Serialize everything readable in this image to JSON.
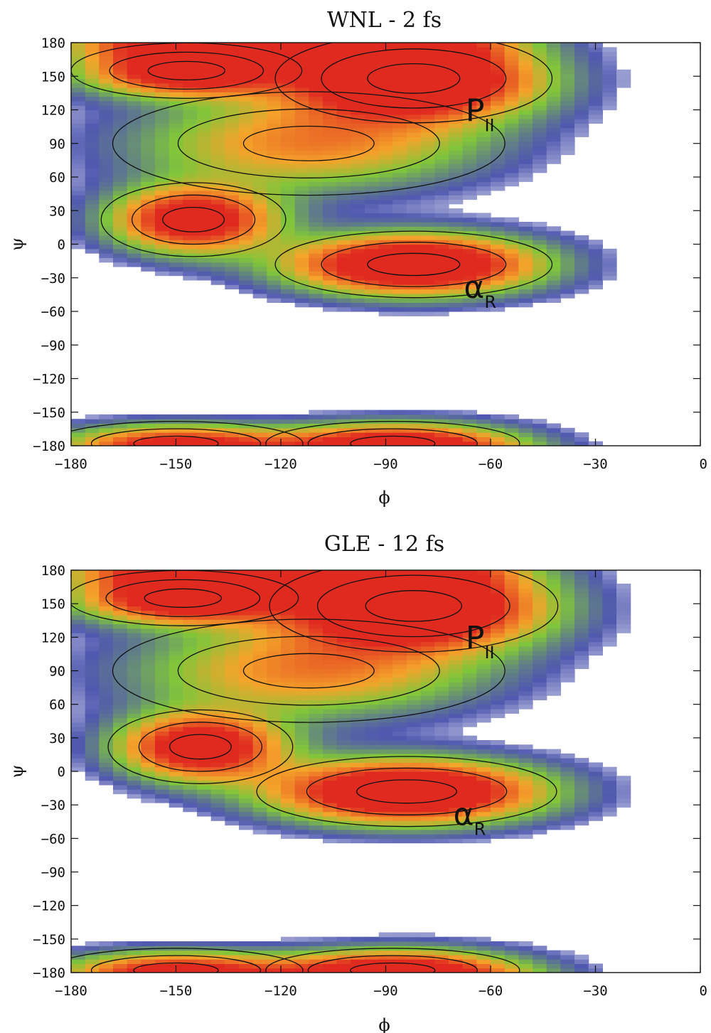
{
  "chart_data": [
    {
      "type": "heatmap",
      "title": "WNL - 2 fs",
      "xlabel": "ϕ",
      "ylabel": "ψ",
      "xlim": [
        -180,
        0
      ],
      "ylim": [
        -180,
        180
      ],
      "xticks": [
        -180,
        -150,
        -120,
        -90,
        -60,
        -30,
        0
      ],
      "yticks": [
        180,
        150,
        120,
        90,
        60,
        30,
        0,
        -30,
        -60,
        -90,
        -120,
        -150,
        -180
      ],
      "region_labels": [
        {
          "main": "P",
          "sub": "II",
          "phi": -63,
          "psi": 110
        },
        {
          "main": "α",
          "sub": "R",
          "phi": -63,
          "psi": -48
        }
      ],
      "basins": [
        {
          "phi": -82,
          "psi": 148,
          "sphi": 24,
          "spsi": 24,
          "w": 1.0
        },
        {
          "phi": -147,
          "psi": 155,
          "sphi": 20,
          "spsi": 15,
          "w": 0.8
        },
        {
          "phi": -82,
          "psi": -18,
          "sphi": 24,
          "spsi": 18,
          "w": 0.95
        },
        {
          "phi": -145,
          "psi": 22,
          "sphi": 16,
          "spsi": 20,
          "w": 0.78
        },
        {
          "phi": -112,
          "psi": 90,
          "sphi": 34,
          "spsi": 28,
          "w": 0.45
        },
        {
          "phi": -150,
          "psi": -178,
          "sphi": 22,
          "spsi": 12,
          "w": 0.6
        },
        {
          "phi": -88,
          "psi": -178,
          "sphi": 22,
          "spsi": 12,
          "w": 0.55
        }
      ]
    },
    {
      "type": "heatmap",
      "title": "GLE - 12 fs",
      "xlabel": "ϕ",
      "ylabel": "ψ",
      "xlim": [
        -180,
        0
      ],
      "ylim": [
        -180,
        180
      ],
      "xticks": [
        -180,
        -150,
        -120,
        -90,
        -60,
        -30,
        0
      ],
      "yticks": [
        180,
        150,
        120,
        90,
        60,
        30,
        0,
        -30,
        -60,
        -90,
        -120,
        -150,
        -180
      ],
      "region_labels": [
        {
          "main": "P",
          "sub": "II",
          "phi": -63,
          "psi": 110
        },
        {
          "main": "α",
          "sub": "R",
          "phi": -66,
          "psi": -48
        }
      ],
      "basins": [
        {
          "phi": -82,
          "psi": 148,
          "sphi": 25,
          "spsi": 25,
          "w": 1.0
        },
        {
          "phi": -148,
          "psi": 155,
          "sphi": 20,
          "spsi": 15,
          "w": 0.82
        },
        {
          "phi": -84,
          "psi": -18,
          "sphi": 26,
          "spsi": 19,
          "w": 0.97
        },
        {
          "phi": -143,
          "psi": 22,
          "sphi": 16,
          "spsi": 20,
          "w": 0.8
        },
        {
          "phi": -112,
          "psi": 90,
          "sphi": 34,
          "spsi": 28,
          "w": 0.45
        },
        {
          "phi": -150,
          "psi": -178,
          "sphi": 22,
          "spsi": 12,
          "w": 0.6
        },
        {
          "phi": -88,
          "psi": -178,
          "sphi": 22,
          "spsi": 12,
          "w": 0.55
        }
      ]
    }
  ],
  "colors": {
    "scale": [
      "#ffffff",
      "#5058b0",
      "#7fc63a",
      "#f4a42a",
      "#e02a20"
    ],
    "contour": "#111111",
    "axis": "#111111"
  }
}
